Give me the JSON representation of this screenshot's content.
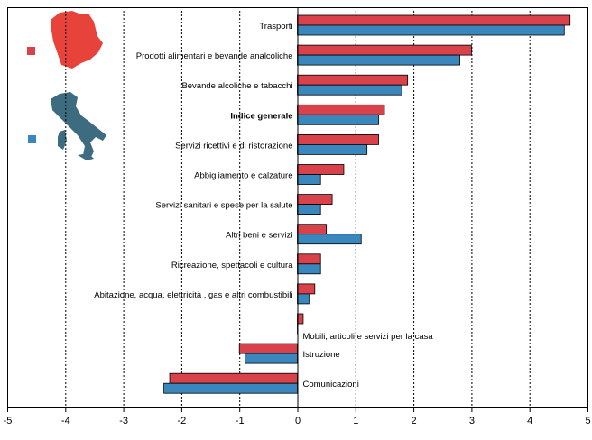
{
  "chart_data": {
    "type": "bar",
    "orientation": "horizontal",
    "categories": [
      "Trasporti",
      "Prodotti alimentari e bevande analcoliche",
      "Bevande alcoliche e tabacchi",
      "Indice generale",
      "Servizi ricettivi e di ristorazione",
      "Abbigliamento e calzature",
      "Servizi sanitari e spese per la salute",
      "Altri beni e servizi",
      "Ricreazione, spettacoli e cultura",
      "Abitazione, acqua, elettricità , gas e altri combustibili",
      "Mobili, articoli e servizi per la casa",
      "Istruzione",
      "Comunicazioni"
    ],
    "bold_categories": [
      "Indice generale"
    ],
    "series": [
      {
        "values": [
          4.7,
          3.0,
          1.9,
          1.5,
          1.4,
          0.8,
          0.6,
          0.5,
          0.4,
          0.3,
          0.1,
          -1.0,
          -2.2
        ],
        "color": "#d9414b"
      },
      {
        "values": [
          4.6,
          2.8,
          1.8,
          1.4,
          1.2,
          0.4,
          0.4,
          1.1,
          0.4,
          0.2,
          0.0,
          -0.9,
          -2.3
        ],
        "color": "#3a87be"
      }
    ],
    "xlim": [
      -5,
      5
    ],
    "xticks": [
      -5,
      -4,
      -3,
      -2,
      -1,
      0,
      1,
      2,
      3,
      4,
      5
    ],
    "grid": "vertical dotted",
    "legend": "top-left, region map icons",
    "legend_colors": [
      "#e8433a",
      "#3d6b80"
    ]
  }
}
